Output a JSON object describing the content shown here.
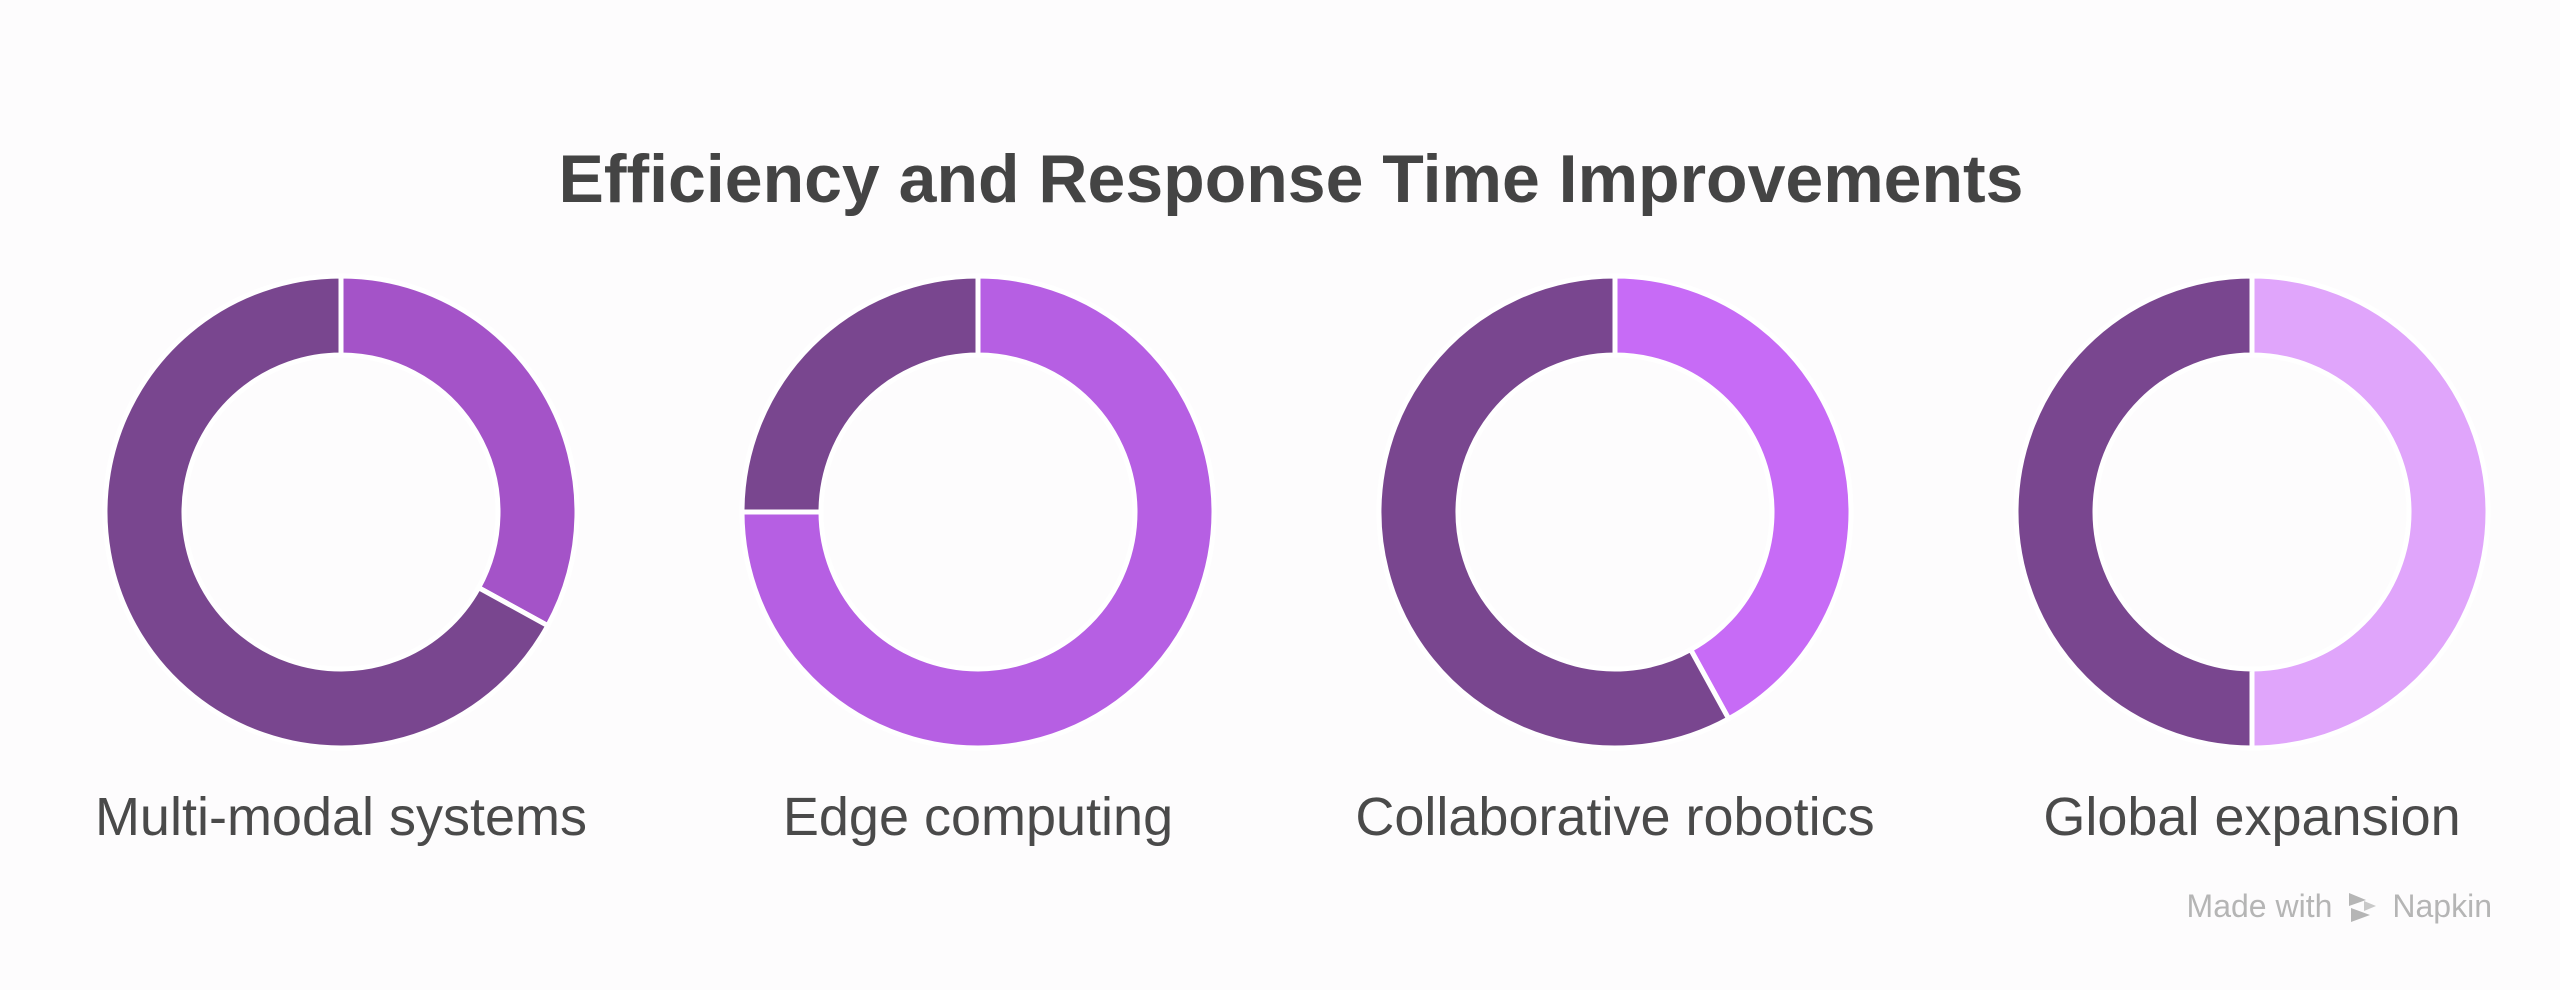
{
  "title": "Efficiency and Response Time Improvements",
  "footer": {
    "prefix": "Made with",
    "brand": "Napkin"
  },
  "colors": {
    "base": "#79468f",
    "separator": "#ffffff",
    "text": "#444444",
    "footer": "#b5b5b5"
  },
  "chart_data": [
    {
      "type": "pie",
      "label": "Multi-modal systems",
      "slices": [
        {
          "value": 33,
          "color": "#a453c8"
        },
        {
          "value": 67,
          "color": "#79468f"
        }
      ]
    },
    {
      "type": "pie",
      "label": "Edge computing",
      "slices": [
        {
          "value": 75,
          "color": "#b65fe3"
        },
        {
          "value": 25,
          "color": "#79468f"
        }
      ]
    },
    {
      "type": "pie",
      "label": "Collaborative robotics",
      "slices": [
        {
          "value": 42,
          "color": "#c76bf6"
        },
        {
          "value": 58,
          "color": "#79468f"
        }
      ]
    },
    {
      "type": "pie",
      "label": "Global expansion",
      "slices": [
        {
          "value": 50,
          "color": "#e0a5fb"
        },
        {
          "value": 50,
          "color": "#79468f"
        }
      ]
    }
  ]
}
